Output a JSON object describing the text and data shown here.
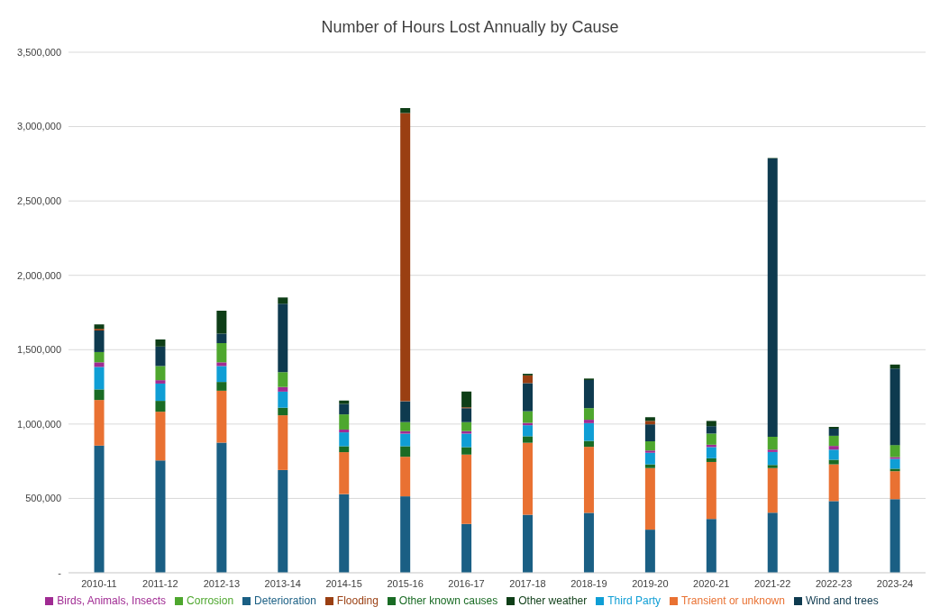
{
  "chart_data": {
    "type": "bar",
    "title": "Number of Hours Lost Annually by Cause",
    "stacked": true,
    "grid": "y",
    "legend": "bottom",
    "categories": [
      "2010-11",
      "2011-12",
      "2012-13",
      "2013-14",
      "2014-15",
      "2015-16",
      "2016-17",
      "2017-18",
      "2018-19",
      "2019-20",
      "2020-21",
      "2021-22",
      "2022-23",
      "2023-24"
    ],
    "ylim": [
      0,
      3500000
    ],
    "yticks": [
      {
        "value": 0,
        "label": "-"
      },
      {
        "value": 500000,
        "label": "500,000"
      },
      {
        "value": 1000000,
        "label": "1,000,000"
      },
      {
        "value": 1500000,
        "label": "1,500,000"
      },
      {
        "value": 2000000,
        "label": "2,000,000"
      },
      {
        "value": 2500000,
        "label": "2,500,000"
      },
      {
        "value": 3000000,
        "label": "3,000,000"
      },
      {
        "value": 3500000,
        "label": "3,500,000"
      }
    ],
    "series": [
      {
        "name": "Deterioration",
        "color": "#1a5f84",
        "values": [
          855000,
          755000,
          875000,
          691000,
          529000,
          514000,
          329000,
          390000,
          403000,
          290000,
          362000,
          404000,
          482000,
          495000
        ]
      },
      {
        "name": "Transient or unknown",
        "color": "#e97132",
        "values": [
          307000,
          328000,
          349000,
          368000,
          282000,
          266000,
          466000,
          484000,
          444000,
          414000,
          383000,
          300000,
          247000,
          188000
        ]
      },
      {
        "name": "Other known causes",
        "color": "#196b24",
        "values": [
          71000,
          73000,
          59000,
          51000,
          40000,
          71000,
          50000,
          44000,
          40000,
          25000,
          25000,
          21000,
          31000,
          17000
        ]
      },
      {
        "name": "Third Party",
        "color": "#0f9ed5",
        "values": [
          151000,
          116000,
          107000,
          108000,
          93000,
          84000,
          90000,
          74000,
          119000,
          78000,
          75000,
          87000,
          68000,
          66000
        ]
      },
      {
        "name": "Birds, Animals, Insects",
        "color": "#a02b93",
        "values": [
          31000,
          23000,
          25000,
          31000,
          19000,
          17000,
          17000,
          16000,
          23000,
          15000,
          16000,
          16000,
          25000,
          12000
        ]
      },
      {
        "name": "Corrosion",
        "color": "#4ea72e",
        "values": [
          69000,
          95000,
          129000,
          100000,
          102000,
          61000,
          61000,
          78000,
          78000,
          62000,
          75000,
          87000,
          68000,
          81000
        ]
      },
      {
        "name": "Wind and trees",
        "color": "#0e3a4f",
        "values": [
          145000,
          131000,
          64000,
          460000,
          70000,
          140000,
          94000,
          189000,
          189000,
          114000,
          50000,
          1870000,
          48000,
          514000
        ]
      },
      {
        "name": "Flooding",
        "color": "#9a3f12",
        "values": [
          11000,
          0,
          0,
          0,
          0,
          1939000,
          6000,
          52000,
          0,
          23000,
          0,
          0,
          0,
          0
        ]
      },
      {
        "name": "Other weather",
        "color": "#0e3e17",
        "values": [
          30000,
          48000,
          154000,
          42000,
          23000,
          32000,
          105000,
          11000,
          10000,
          25000,
          35000,
          4000,
          12000,
          27000
        ]
      }
    ]
  }
}
